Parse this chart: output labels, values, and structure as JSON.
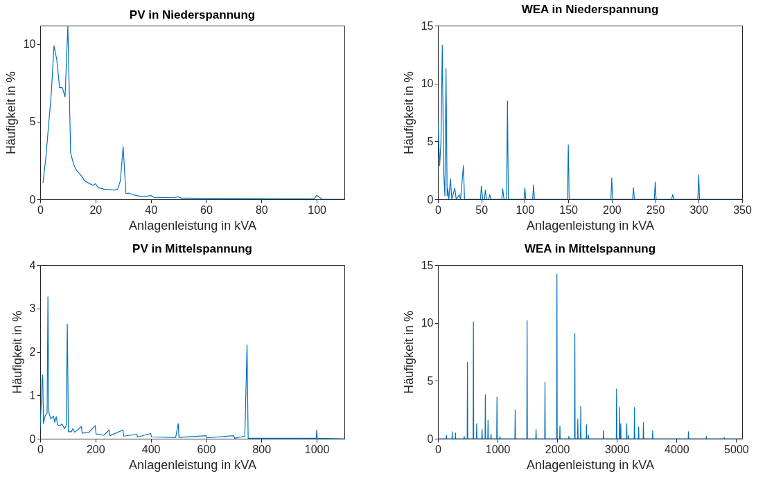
{
  "chart_data": [
    {
      "type": "line",
      "title": "PV in Niederspannung",
      "xlabel": "Anlagenleistung in kVA",
      "ylabel": "Häufigkeit in %",
      "color": "#0072bd",
      "xlim": [
        0,
        110
      ],
      "ylim": [
        0,
        11.2
      ],
      "xticks": [
        0,
        20,
        40,
        60,
        80,
        100
      ],
      "yticks": [
        0,
        5,
        10
      ],
      "x": [
        1,
        2,
        4,
        5,
        6,
        7,
        8,
        9,
        10,
        11,
        12,
        13,
        15,
        16,
        19,
        20,
        21,
        23,
        27,
        28,
        29,
        30,
        31,
        32,
        34,
        37,
        40,
        41,
        48,
        50,
        51,
        61,
        70,
        99,
        100,
        102,
        110
      ],
      "values": [
        1.05,
        2.6,
        6.8,
        9.9,
        9.0,
        7.2,
        7.2,
        6.6,
        11.2,
        3.0,
        2.3,
        1.9,
        1.5,
        1.2,
        0.9,
        1.0,
        0.75,
        0.65,
        0.6,
        0.65,
        1.2,
        3.4,
        0.36,
        0.4,
        0.27,
        0.16,
        0.24,
        0.13,
        0.1,
        0.16,
        0.07,
        0.06,
        0.05,
        0.03,
        0.24,
        0,
        0
      ]
    },
    {
      "type": "line",
      "title": "WEA in Niederspannung",
      "xlabel": "Anlagenleistung in kVA",
      "ylabel": "Häufigkeit in %",
      "color": "#0072bd",
      "xlim": [
        0,
        350
      ],
      "ylim": [
        0,
        15
      ],
      "xticks": [
        0,
        50,
        100,
        150,
        200,
        250,
        300,
        350
      ],
      "yticks": [
        0,
        5,
        10,
        15
      ],
      "x": [
        0,
        2,
        3.5,
        5,
        6.6,
        8,
        9.3,
        10.6,
        11.4,
        12.5,
        14.4,
        16,
        19.4,
        21,
        24.5,
        26,
        29.3,
        30.6,
        49,
        50,
        51.5,
        53.5,
        54.5,
        56,
        58.5,
        59.6,
        61,
        73.5,
        74.5,
        76,
        79,
        80,
        81,
        99,
        100,
        101,
        109,
        110,
        111,
        149,
        150,
        151,
        199,
        200,
        201,
        224,
        225,
        226,
        249,
        250,
        251,
        269,
        270,
        271.5,
        299,
        300,
        301,
        350
      ],
      "values": [
        6.7,
        2.9,
        5,
        13.3,
        2.3,
        0.3,
        11.3,
        0.3,
        0.9,
        0,
        1.75,
        0,
        0.95,
        0,
        0.4,
        0,
        2.9,
        0,
        0,
        1.15,
        0,
        0,
        0.8,
        0,
        0,
        0.4,
        0,
        0,
        0.9,
        0,
        0,
        8.5,
        0,
        0,
        1,
        0,
        0,
        1.25,
        0,
        0,
        4.7,
        0,
        0,
        1.85,
        0,
        0,
        1,
        0,
        0,
        1.5,
        0,
        0,
        0.4,
        0,
        0,
        2.1,
        0,
        0
      ]
    },
    {
      "type": "line",
      "title": "PV in Mittelspannung",
      "xlabel": "Anlagenleistung in kVA",
      "ylabel": "Häufigkeit in %",
      "color": "#0072bd",
      "xlim": [
        0,
        1100
      ],
      "ylim": [
        0,
        4
      ],
      "xticks": [
        0,
        200,
        400,
        600,
        800,
        1000
      ],
      "yticks": [
        0,
        1,
        2,
        3,
        4
      ],
      "x": [
        0,
        4,
        7,
        9,
        12,
        17,
        25,
        28,
        31,
        38,
        48,
        53,
        58,
        63,
        71,
        79,
        88,
        94,
        98,
        102,
        113,
        118,
        125,
        149,
        152,
        175,
        199,
        202,
        230,
        249,
        252,
        299,
        302,
        349,
        352,
        400,
        402,
        490,
        499,
        502,
        600,
        602,
        700,
        703,
        740,
        748,
        752,
        998,
        1000,
        1002,
        1100
      ],
      "values": [
        0.25,
        0.83,
        1.36,
        1.47,
        0.35,
        0.51,
        0.59,
        3.27,
        0.62,
        0.46,
        0.52,
        0.38,
        0.51,
        0.32,
        0.3,
        0.34,
        0.23,
        0.3,
        2.64,
        0.16,
        0.16,
        0.23,
        0.15,
        0.28,
        0.13,
        0.14,
        0.3,
        0.11,
        0.08,
        0.2,
        0.07,
        0.2,
        0.06,
        0.1,
        0.04,
        0.12,
        0.04,
        0.03,
        0.35,
        0.03,
        0.07,
        0.02,
        0.07,
        0.01,
        0.06,
        2.16,
        0.01,
        0.01,
        0.2,
        0.01,
        0
      ]
    },
    {
      "type": "line",
      "title": "WEA in Mittelspannung",
      "xlabel": "Anlagenleistung in kVA",
      "ylabel": "Häufigkeit in %",
      "color": "#0072bd",
      "xlim": [
        0,
        5100
      ],
      "ylim": [
        0,
        15
      ],
      "xticks": [
        0,
        1000,
        2000,
        3000,
        4000,
        5000
      ],
      "yticks": [
        0,
        5,
        10,
        15
      ],
      "x": [
        0,
        138,
        143,
        148,
        235,
        240,
        245,
        289,
        294,
        299,
        436,
        441,
        446,
        490,
        495,
        500,
        590,
        595,
        600,
        645,
        650,
        655,
        735,
        740,
        745,
        790,
        795,
        800,
        835,
        840,
        845,
        885,
        890,
        895,
        985,
        990,
        995,
        1035,
        1040,
        1045,
        1290,
        1295,
        1300,
        1490,
        1495,
        1500,
        1640,
        1645,
        1650,
        1790,
        1795,
        1800,
        1990,
        1995,
        2000,
        2040,
        2045,
        2050,
        2190,
        2195,
        2200,
        2290,
        2295,
        2300,
        2340,
        2345,
        2350,
        2390,
        2395,
        2400,
        2485,
        2490,
        2495,
        2520,
        2525,
        2530,
        2770,
        2775,
        2780,
        2990,
        2995,
        3000,
        3040,
        3045,
        3050,
        3060,
        3065,
        3070,
        3160,
        3165,
        3170,
        3190,
        3195,
        3200,
        3290,
        3295,
        3300,
        3360,
        3365,
        3370,
        3440,
        3445,
        3450,
        3595,
        3600,
        3605,
        4195,
        4200,
        4205,
        4495,
        4500,
        4505,
        4795,
        4800,
        4805,
        5100
      ],
      "values": [
        0,
        0,
        0.3,
        0,
        0,
        0.6,
        0,
        0,
        0.5,
        0,
        0,
        0.2,
        0,
        0,
        6.6,
        0,
        0,
        10.1,
        0,
        0,
        1.3,
        0,
        0,
        0.8,
        0,
        0,
        3.8,
        0,
        0,
        1.6,
        0,
        0,
        0.4,
        0,
        0,
        3.6,
        0,
        0,
        0.2,
        0,
        0,
        2.5,
        0,
        0,
        10.2,
        0,
        0,
        0.8,
        0,
        0,
        4.9,
        0,
        0,
        14.2,
        0,
        0,
        1.1,
        0,
        0,
        0.2,
        0,
        0,
        9.1,
        0,
        0,
        1.7,
        0,
        0,
        2.8,
        0,
        0,
        1.2,
        0,
        0,
        0.3,
        0,
        0,
        0.7,
        0,
        0,
        4.3,
        0,
        0,
        2.7,
        0,
        0,
        1.3,
        0,
        0,
        1.3,
        0,
        0,
        0.3,
        0,
        0,
        2.7,
        0,
        0,
        1.0,
        0,
        0,
        1.4,
        0,
        0,
        0.7,
        0,
        0,
        0.6,
        0,
        0,
        0.2,
        0,
        0,
        0.1,
        0,
        0
      ]
    }
  ]
}
